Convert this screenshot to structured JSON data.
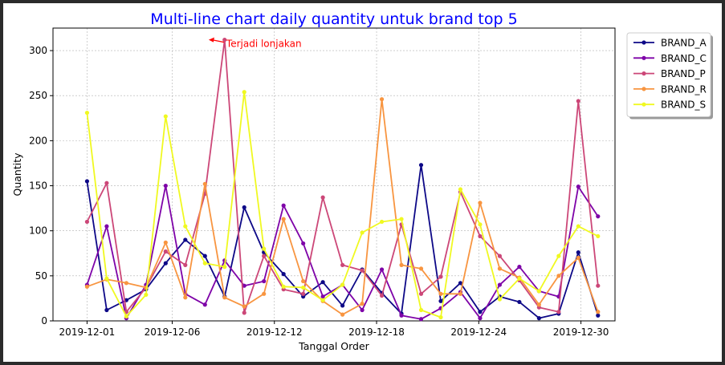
{
  "chart_data": {
    "type": "line",
    "title": "Multi-line chart daily quantity untuk brand top 5",
    "xlabel": "Tanggal Order",
    "ylabel": "Quantity",
    "x_start": "2019-12-01",
    "x_end": "2019-12-31",
    "xlim": [
      "2019-11-29",
      "2020-01-01"
    ],
    "ylim": [
      0,
      325
    ],
    "x_ticks": [
      "2019-12-01",
      "2019-12-06",
      "2019-12-12",
      "2019-12-18",
      "2019-12-24",
      "2019-12-30"
    ],
    "y_ticks": [
      0,
      50,
      100,
      150,
      200,
      250,
      300
    ],
    "grid": true,
    "legend_position": "outside-top-right",
    "annotation": {
      "text": "Terjadi lonjakan",
      "x": "2019-12-08",
      "y": 312,
      "color": "#ff0000"
    },
    "title_color": "#0000ff",
    "series": [
      {
        "name": "BRAND_A",
        "color": "#0d0887",
        "values": [
          155,
          12,
          23,
          35,
          64,
          90,
          72,
          27,
          126,
          76,
          52,
          27,
          43,
          17,
          57,
          31,
          8,
          173,
          22,
          42,
          10,
          27,
          21,
          3,
          8,
          76,
          6
        ]
      },
      {
        "name": "BRAND_C",
        "color": "#7e03a8",
        "values": [
          40,
          105,
          3,
          40,
          150,
          30,
          18,
          67,
          39,
          44,
          128,
          86,
          27,
          40,
          12,
          57,
          6,
          2,
          14,
          32,
          3,
          40,
          60,
          33,
          27,
          149,
          116
        ]
      },
      {
        "name": "BRAND_P",
        "color": "#cc4778",
        "values": [
          110,
          153,
          10,
          37,
          77,
          62,
          141,
          312,
          9,
          72,
          35,
          30,
          137,
          62,
          56,
          28,
          107,
          30,
          49,
          143,
          94,
          72,
          45,
          15,
          10,
          244,
          39
        ]
      },
      {
        "name": "BRAND_R",
        "color": "#f89540",
        "values": [
          38,
          46,
          42,
          37,
          87,
          26,
          152,
          26,
          16,
          30,
          113,
          44,
          22,
          7,
          19,
          246,
          62,
          58,
          30,
          30,
          131,
          58,
          48,
          18,
          50,
          70,
          10
        ]
      },
      {
        "name": "BRAND_S",
        "color": "#f0f921",
        "values": [
          231,
          47,
          5,
          29,
          227,
          105,
          64,
          60,
          254,
          80,
          38,
          37,
          23,
          40,
          98,
          110,
          113,
          12,
          4,
          146,
          107,
          24,
          47,
          33,
          72,
          105,
          94
        ]
      }
    ]
  }
}
